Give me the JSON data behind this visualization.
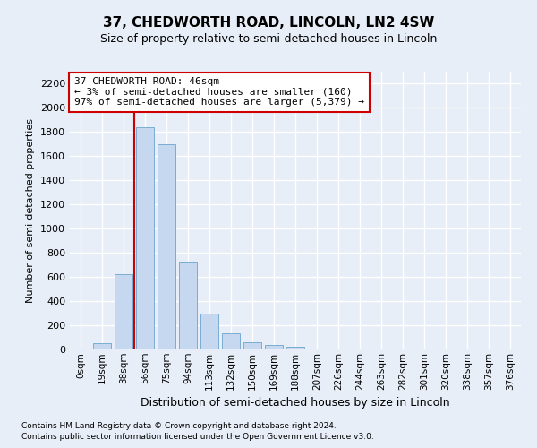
{
  "title": "37, CHEDWORTH ROAD, LINCOLN, LN2 4SW",
  "subtitle": "Size of property relative to semi-detached houses in Lincoln",
  "xlabel": "Distribution of semi-detached houses by size in Lincoln",
  "ylabel": "Number of semi-detached properties",
  "footnote1": "Contains HM Land Registry data © Crown copyright and database right 2024.",
  "footnote2": "Contains public sector information licensed under the Open Government Licence v3.0.",
  "annotation_title": "37 CHEDWORTH ROAD: 46sqm",
  "annotation_line1": "← 3% of semi-detached houses are smaller (160)",
  "annotation_line2": "97% of semi-detached houses are larger (5,379) →",
  "bar_labels": [
    "0sqm",
    "19sqm",
    "38sqm",
    "56sqm",
    "75sqm",
    "94sqm",
    "113sqm",
    "132sqm",
    "150sqm",
    "169sqm",
    "188sqm",
    "207sqm",
    "226sqm",
    "244sqm",
    "263sqm",
    "282sqm",
    "301sqm",
    "320sqm",
    "338sqm",
    "357sqm",
    "376sqm"
  ],
  "bar_values": [
    10,
    50,
    625,
    1840,
    1700,
    730,
    300,
    130,
    60,
    40,
    20,
    10,
    5,
    2,
    0,
    0,
    0,
    0,
    0,
    0,
    0
  ],
  "bar_color": "#c5d8f0",
  "bar_edge_color": "#7aadd4",
  "vline_color": "#cc0000",
  "vline_x": 2.5,
  "ylim": [
    0,
    2300
  ],
  "yticks": [
    0,
    200,
    400,
    600,
    800,
    1000,
    1200,
    1400,
    1600,
    1800,
    2000,
    2200
  ],
  "bg_color": "#e8eef7",
  "plot_bg_color": "#e8eef7",
  "annotation_box_color": "#ffffff",
  "annotation_box_edge": "#cc0000",
  "grid_color": "#ffffff",
  "title_fontsize": 11,
  "subtitle_fontsize": 9,
  "ylabel_fontsize": 8,
  "xlabel_fontsize": 9,
  "tick_fontsize": 8,
  "xtick_fontsize": 7.5,
  "annot_fontsize": 8
}
